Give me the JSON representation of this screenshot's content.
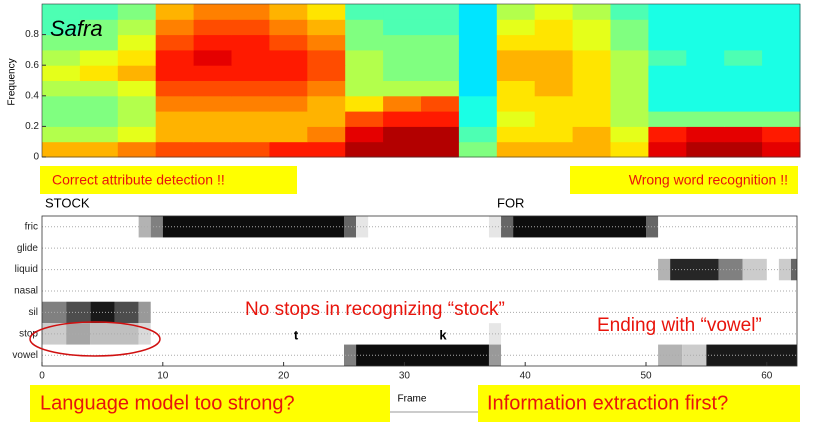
{
  "chart_data": [
    {
      "type": "spectrogram",
      "title": "Safra",
      "ylabel": "Frequency",
      "ylim": [
        0,
        1
      ],
      "yticks": [
        0,
        0.2,
        0.4,
        0.6,
        0.8
      ],
      "values": [
        [
          0.7,
          0.7,
          0.75,
          0.8,
          0.8,
          0.8,
          0.85,
          0.85,
          0.95,
          0.95,
          0.95,
          0.5,
          0.7,
          0.7,
          0.7,
          0.65,
          0.9,
          0.95,
          0.95,
          0.9
        ],
        [
          0.55,
          0.55,
          0.6,
          0.7,
          0.7,
          0.7,
          0.7,
          0.75,
          0.9,
          0.95,
          0.95,
          0.45,
          0.65,
          0.65,
          0.7,
          0.6,
          0.85,
          0.9,
          0.9,
          0.85
        ],
        [
          0.5,
          0.5,
          0.55,
          0.7,
          0.7,
          0.7,
          0.7,
          0.7,
          0.8,
          0.85,
          0.85,
          0.4,
          0.6,
          0.65,
          0.65,
          0.55,
          0.5,
          0.5,
          0.5,
          0.5
        ],
        [
          0.5,
          0.5,
          0.55,
          0.75,
          0.75,
          0.75,
          0.75,
          0.7,
          0.65,
          0.75,
          0.8,
          0.4,
          0.65,
          0.65,
          0.65,
          0.55,
          0.4,
          0.4,
          0.4,
          0.4
        ],
        [
          0.55,
          0.55,
          0.6,
          0.8,
          0.8,
          0.8,
          0.8,
          0.75,
          0.55,
          0.55,
          0.55,
          0.35,
          0.65,
          0.7,
          0.65,
          0.55,
          0.4,
          0.4,
          0.4,
          0.4
        ],
        [
          0.6,
          0.65,
          0.7,
          0.85,
          0.85,
          0.85,
          0.85,
          0.8,
          0.55,
          0.5,
          0.5,
          0.35,
          0.7,
          0.7,
          0.65,
          0.55,
          0.4,
          0.4,
          0.4,
          0.4
        ],
        [
          0.55,
          0.6,
          0.65,
          0.85,
          0.9,
          0.85,
          0.85,
          0.8,
          0.55,
          0.5,
          0.5,
          0.35,
          0.7,
          0.7,
          0.65,
          0.55,
          0.45,
          0.4,
          0.45,
          0.4
        ],
        [
          0.5,
          0.5,
          0.6,
          0.8,
          0.85,
          0.85,
          0.8,
          0.75,
          0.5,
          0.5,
          0.5,
          0.35,
          0.65,
          0.65,
          0.6,
          0.5,
          0.4,
          0.4,
          0.4,
          0.4
        ],
        [
          0.45,
          0.5,
          0.55,
          0.75,
          0.8,
          0.8,
          0.75,
          0.7,
          0.5,
          0.45,
          0.45,
          0.35,
          0.6,
          0.65,
          0.6,
          0.5,
          0.4,
          0.4,
          0.4,
          0.4
        ],
        [
          0.45,
          0.45,
          0.5,
          0.7,
          0.75,
          0.75,
          0.7,
          0.65,
          0.45,
          0.45,
          0.45,
          0.35,
          0.55,
          0.6,
          0.55,
          0.45,
          0.4,
          0.4,
          0.4,
          0.4
        ]
      ]
    },
    {
      "type": "activation",
      "xlabel": "Frame",
      "categories": [
        "fric",
        "glide",
        "liquid",
        "nasal",
        "sil",
        "stop",
        "vowel"
      ],
      "xlim": [
        0,
        62.5
      ],
      "xticks": [
        0,
        10,
        20,
        30,
        40,
        50,
        60
      ],
      "grid": true,
      "cells": [
        [
          0,
          8,
          9,
          0.3
        ],
        [
          0,
          9,
          10,
          0.5
        ],
        [
          0,
          10,
          25,
          0.95
        ],
        [
          0,
          25,
          26,
          0.6
        ],
        [
          0,
          26,
          27,
          0.1
        ],
        [
          0,
          37,
          38,
          0.1
        ],
        [
          0,
          38,
          39,
          0.6
        ],
        [
          0,
          39,
          50,
          0.95
        ],
        [
          0,
          50,
          51,
          0.6
        ],
        [
          2,
          51,
          52,
          0.3
        ],
        [
          2,
          52,
          56,
          0.85
        ],
        [
          2,
          56,
          58,
          0.5
        ],
        [
          2,
          58,
          60,
          0.2
        ],
        [
          2,
          61,
          62,
          0.2
        ],
        [
          2,
          62,
          63,
          0.6
        ],
        [
          4,
          0,
          2,
          0.5
        ],
        [
          4,
          2,
          4,
          0.7
        ],
        [
          4,
          4,
          6,
          0.9
        ],
        [
          4,
          6,
          8,
          0.7
        ],
        [
          4,
          8,
          9,
          0.4
        ],
        [
          5,
          0,
          2,
          0.2
        ],
        [
          5,
          2,
          4,
          0.35
        ],
        [
          5,
          4,
          8,
          0.25
        ],
        [
          5,
          8,
          9,
          0.15
        ],
        [
          5,
          37,
          38,
          0.1
        ],
        [
          6,
          25,
          26,
          0.5
        ],
        [
          6,
          26,
          37,
          0.95
        ],
        [
          6,
          37,
          38,
          0.4
        ],
        [
          6,
          51,
          53,
          0.3
        ],
        [
          6,
          53,
          55,
          0.2
        ],
        [
          6,
          55,
          63,
          0.9
        ]
      ]
    }
  ],
  "annotations": {
    "top_left": "Correct attribute detection !!",
    "top_right": "Wrong word recognition !!",
    "word1": "STOCK",
    "word2": "FOR",
    "phone1": "t",
    "phone2": "k",
    "middle": "No stops in recognizing “stock”",
    "right": "Ending with “vowel”",
    "bottom_left": "Language model too strong?",
    "bottom_right": "Information extraction first?"
  }
}
